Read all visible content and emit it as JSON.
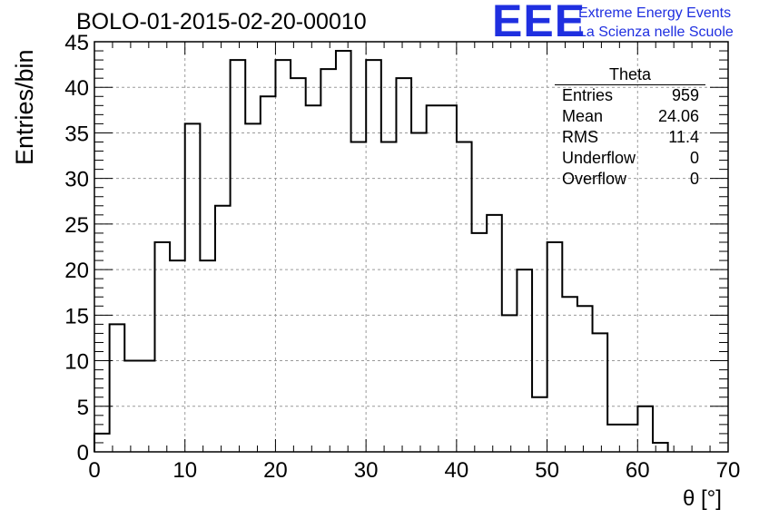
{
  "title": "BOLO-01-2015-02-20-00010",
  "logo": {
    "mark": "EEE",
    "line1": "Extreme Energy Events",
    "line2": "La Scienza nelle Scuole",
    "color": "#1f2fe0"
  },
  "stats_box": {
    "title": "Theta",
    "rows": [
      {
        "label": "Entries",
        "value": "959"
      },
      {
        "label": "Mean",
        "value": "24.06"
      },
      {
        "label": "RMS",
        "value": "11.4"
      },
      {
        "label": "Underflow",
        "value": "0"
      },
      {
        "label": "Overflow",
        "value": "0"
      }
    ]
  },
  "chart_data": {
    "type": "histogram",
    "title": "BOLO-01-2015-02-20-00010",
    "xlabel": "θ [°]",
    "ylabel": "Entries/bin",
    "xlim": [
      0,
      70
    ],
    "ylim": [
      0,
      45
    ],
    "grid": true,
    "bin_width": 1.667,
    "bin_edges_start": 0,
    "values": [
      2,
      14,
      10,
      10,
      23,
      21,
      36,
      21,
      27,
      43,
      36,
      39,
      43,
      41,
      38,
      42,
      44,
      34,
      43,
      34,
      41,
      35,
      38,
      38,
      34,
      24,
      26,
      15,
      20,
      6,
      23,
      17,
      16,
      13,
      3,
      3,
      5,
      1
    ],
    "xticks": [
      "0",
      "10",
      "20",
      "30",
      "40",
      "50",
      "60",
      "70"
    ],
    "yticks": [
      "0",
      "5",
      "10",
      "15",
      "20",
      "25",
      "30",
      "35",
      "40",
      "45"
    ],
    "line_color": "#000000"
  }
}
